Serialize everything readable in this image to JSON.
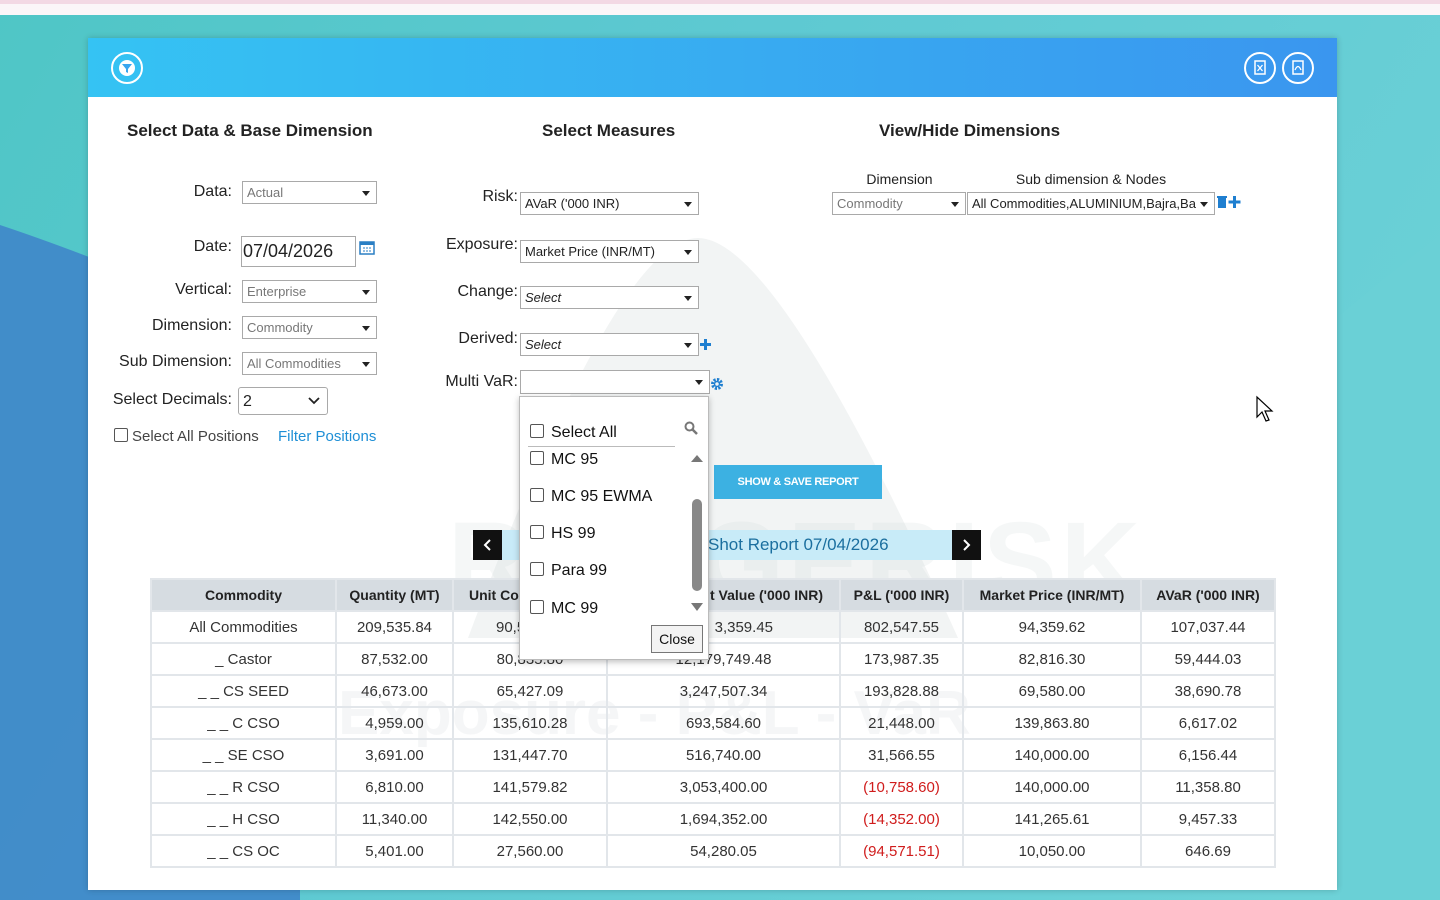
{
  "sections": [
    "Select Data & Base Dimension",
    "Select Measures",
    "View/Hide Dimensions"
  ],
  "base": {
    "fields": [
      {
        "label": "Data:",
        "value": "Actual"
      },
      {
        "label": "Date:",
        "value": "07/04/2026"
      },
      {
        "label": "Vertical:",
        "value": "Enterprise"
      },
      {
        "label": "Dimension:",
        "value": "Commodity"
      },
      {
        "label": "Sub Dimension:",
        "value": "All Commodities"
      },
      {
        "label": "Select Decimals:",
        "value": "2"
      }
    ],
    "select_all_positions": "Select All Positions",
    "filter_positions": "Filter Positions"
  },
  "measures": {
    "fields": [
      {
        "label": "Risk:",
        "value": "AVaR ('000 INR)"
      },
      {
        "label": "Exposure:",
        "value": "Market Price (INR/MT)"
      },
      {
        "label": "Change:",
        "value": "Select"
      },
      {
        "label": "Derived:",
        "value": "Select"
      },
      {
        "label": "Multi VaR:"
      }
    ]
  },
  "multivar_dropdown": {
    "select_all": "Select All",
    "options": [
      "MC 95",
      "MC 95 EWMA",
      "HS 99",
      "Para 99",
      "MC 99"
    ],
    "close": "Close"
  },
  "view_hide": {
    "dimension_header": "Dimension",
    "subdimension_header": "Sub dimension & Nodes",
    "dimension": "Commodity",
    "subdimension": "All Commodities,ALUMINIUM,Bajra,Ba"
  },
  "button": "SHOW & SAVE REPORT",
  "report_title": "Shot Report 07/04/2026",
  "watermark": {
    "brand": "RANGERISK",
    "tagline": "Exposure - P&L - VaR"
  },
  "table": {
    "columns": [
      "Commodity",
      "Quantity (MT)",
      "Unit Co",
      "t Value ('000 INR)",
      "P&L ('000 INR)",
      "Market Price (INR/MT)",
      "AVaR ('000 INR)"
    ],
    "rows": [
      [
        "All Commodities",
        "209,535.84",
        "90,5",
        "3,359.45",
        "802,547.55",
        "94,359.62",
        "107,037.44"
      ],
      [
        "_ Castor",
        "87,532.00",
        "80,835.80",
        "12,179,749.48",
        "173,987.35",
        "82,816.30",
        "59,444.03"
      ],
      [
        "_ _ CS SEED",
        "46,673.00",
        "65,427.09",
        "3,247,507.34",
        "193,828.88",
        "69,580.00",
        "38,690.78"
      ],
      [
        "_ _ C CSO",
        "4,959.00",
        "135,610.28",
        "693,584.60",
        "21,448.00",
        "139,863.80",
        "6,617.02"
      ],
      [
        "_ _ SE CSO",
        "3,691.00",
        "131,447.70",
        "516,740.00",
        "31,566.55",
        "140,000.00",
        "6,156.44"
      ],
      [
        "_ _ R CSO",
        "6,810.00",
        "141,579.82",
        "3,053,400.00",
        "(10,758.60)",
        "140,000.00",
        "11,358.80"
      ],
      [
        "_ _ H CSO",
        "11,340.00",
        "142,550.00",
        "1,694,352.00",
        "(14,352.00)",
        "141,265.61",
        "9,457.33"
      ],
      [
        "_ _ CS OC",
        "5,401.00",
        "27,560.00",
        "54,280.05",
        "(94,571.51)",
        "10,050.00",
        "646.69"
      ]
    ]
  }
}
